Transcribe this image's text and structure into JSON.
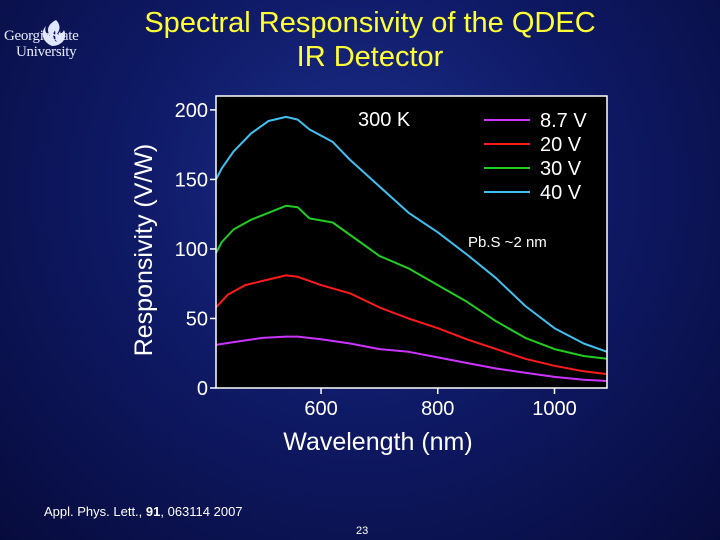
{
  "logo": {
    "icon": "flame-icon",
    "line1": "GeorgiaState",
    "line2": "University"
  },
  "slide": {
    "title_line1": "Spectral Responsivity of the QDEC",
    "title_line2": "IR Detector",
    "citation_prefix": "Appl. Phys. Lett., ",
    "citation_volume": "91",
    "citation_suffix": ", 063114 2007",
    "page_number": "23"
  },
  "chart_data": {
    "type": "line",
    "xlabel": "Wavelength (nm)",
    "ylabel": "Responsivity (V/W)",
    "xlim": [
      420,
      1090
    ],
    "ylim": [
      0,
      210
    ],
    "x_ticks": [
      600,
      800,
      1000
    ],
    "y_ticks": [
      0,
      50,
      100,
      150,
      200
    ],
    "grid": false,
    "legend_position": "top-right",
    "annotations": [
      "300 K",
      "Pb.S ~2 nm"
    ],
    "series": [
      {
        "name": "8.7 V",
        "color": "#cc33ff",
        "x": [
          420,
          450,
          500,
          540,
          560,
          600,
          650,
          700,
          750,
          800,
          850,
          900,
          950,
          1000,
          1050,
          1090
        ],
        "y": [
          31,
          33,
          36,
          37,
          37,
          35,
          32,
          28,
          26,
          22,
          18,
          14,
          11,
          8,
          6,
          5
        ]
      },
      {
        "name": "20 V",
        "color": "#ff1a1a",
        "x": [
          420,
          440,
          470,
          500,
          540,
          560,
          600,
          650,
          700,
          750,
          800,
          850,
          900,
          950,
          1000,
          1050,
          1090
        ],
        "y": [
          58,
          67,
          74,
          77,
          81,
          80,
          74,
          68,
          58,
          50,
          43,
          35,
          28,
          21,
          16,
          12,
          10
        ]
      },
      {
        "name": "30 V",
        "color": "#22cc22",
        "x": [
          420,
          430,
          450,
          480,
          510,
          540,
          560,
          580,
          620,
          650,
          700,
          750,
          800,
          850,
          900,
          950,
          1000,
          1050,
          1090
        ],
        "y": [
          97,
          105,
          114,
          121,
          126,
          131,
          130,
          122,
          119,
          110,
          95,
          86,
          74,
          62,
          48,
          36,
          28,
          23,
          21
        ]
      },
      {
        "name": "40 V",
        "color": "#40c0f0",
        "x": [
          420,
          430,
          450,
          480,
          510,
          540,
          560,
          580,
          620,
          650,
          700,
          750,
          800,
          850,
          900,
          950,
          1000,
          1050,
          1090
        ],
        "y": [
          150,
          158,
          170,
          183,
          192,
          195,
          193,
          186,
          177,
          164,
          145,
          126,
          112,
          96,
          79,
          59,
          43,
          32,
          26
        ]
      }
    ]
  }
}
